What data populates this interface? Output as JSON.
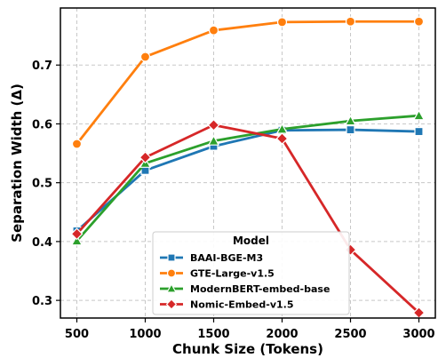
{
  "chart_data": {
    "type": "line",
    "xlabel": "Chunk Size (Tokens)",
    "ylabel": "Separation Width (Δ)",
    "x": [
      500,
      1000,
      1500,
      2000,
      2500,
      3000
    ],
    "x_ticks": [
      "500",
      "1000",
      "1500",
      "2000",
      "2500",
      "3000"
    ],
    "y_ticks": [
      "0.3",
      "0.4",
      "0.5",
      "0.6",
      "0.7"
    ],
    "xlim": [
      380,
      3120
    ],
    "ylim": [
      0.27,
      0.797
    ],
    "grid": true,
    "legend": {
      "title": "Model",
      "placement": "lower-center"
    },
    "series": [
      {
        "name": "BAAI-BGE-M3",
        "color": "#1f77b4",
        "marker": "square",
        "values": [
          0.418,
          0.521,
          0.562,
          0.589,
          0.59,
          0.587
        ]
      },
      {
        "name": "GTE-Large-v1.5",
        "color": "#ff7f0e",
        "marker": "circle",
        "values": [
          0.566,
          0.714,
          0.759,
          0.773,
          0.774,
          0.774
        ]
      },
      {
        "name": "ModernBERT-embed-base",
        "color": "#2ca02c",
        "marker": "triangle",
        "values": [
          0.401,
          0.533,
          0.571,
          0.591,
          0.605,
          0.614
        ]
      },
      {
        "name": "Nomic-Embed-v1.5",
        "color": "#d62728",
        "marker": "diamond",
        "values": [
          0.413,
          0.543,
          0.598,
          0.575,
          0.386,
          0.279
        ]
      }
    ]
  }
}
